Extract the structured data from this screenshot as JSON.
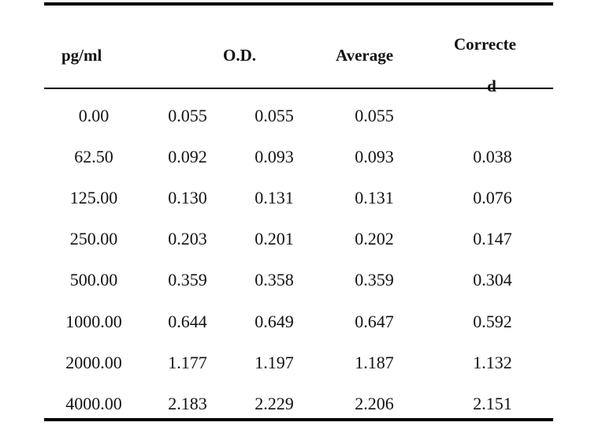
{
  "table": {
    "headers": {
      "concentration": "pg/ml",
      "od": "O.D.",
      "average": "Average",
      "corrected_line1": "Correcte",
      "corrected_line2": "d"
    },
    "rows": [
      {
        "conc": "0.00",
        "od1": "0.055",
        "od2": "0.055",
        "avg": "0.055",
        "corrected": ""
      },
      {
        "conc": "62.50",
        "od1": "0.092",
        "od2": "0.093",
        "avg": "0.093",
        "corrected": "0.038"
      },
      {
        "conc": "125.00",
        "od1": "0.130",
        "od2": "0.131",
        "avg": "0.131",
        "corrected": "0.076"
      },
      {
        "conc": "250.00",
        "od1": "0.203",
        "od2": "0.201",
        "avg": "0.202",
        "corrected": "0.147"
      },
      {
        "conc": "500.00",
        "od1": "0.359",
        "od2": "0.358",
        "avg": "0.359",
        "corrected": "0.304"
      },
      {
        "conc": "1000.00",
        "od1": "0.644",
        "od2": "0.649",
        "avg": "0.647",
        "corrected": "0.592"
      },
      {
        "conc": "2000.00",
        "od1": "1.177",
        "od2": "1.197",
        "avg": "1.187",
        "corrected": "1.132"
      },
      {
        "conc": "4000.00",
        "od1": "2.183",
        "od2": "2.229",
        "avg": "2.206",
        "corrected": "2.151"
      }
    ]
  }
}
